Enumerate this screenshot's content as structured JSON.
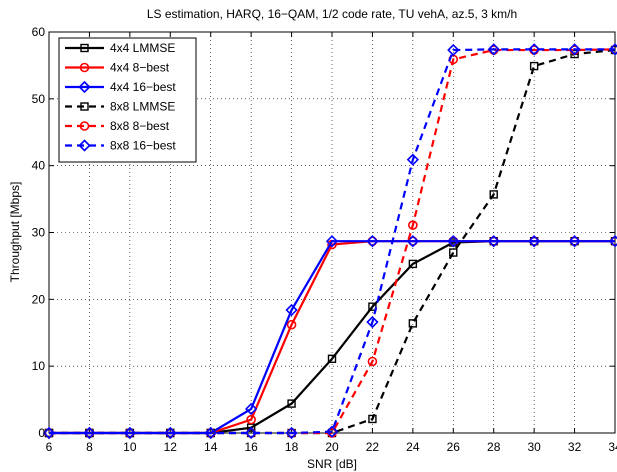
{
  "chart_data": {
    "type": "line",
    "title": "LS estimation, HARQ, 16−QAM, 1/2 code rate, TU vehA, az.5, 3 km/h",
    "xlabel": "SNR [dB]",
    "ylabel": "Throughput [Mbps]",
    "xlim": [
      6,
      34
    ],
    "ylim": [
      0,
      60
    ],
    "xticks": [
      "6",
      "8",
      "10",
      "12",
      "14",
      "16",
      "18",
      "20",
      "22",
      "24",
      "26",
      "28",
      "30",
      "32",
      "34"
    ],
    "yticks": [
      "0",
      "10",
      "20",
      "30",
      "40",
      "50",
      "60"
    ],
    "grid": true,
    "legend_position": "top-left",
    "x": [
      6,
      8,
      10,
      12,
      14,
      16,
      18,
      20,
      22,
      24,
      26,
      28,
      30,
      32,
      34
    ],
    "series": [
      {
        "name": "4x4 LMMSE",
        "color": "#000000",
        "dash": "solid",
        "marker": "square",
        "values": [
          0,
          0,
          0,
          0,
          0,
          0.8,
          4.4,
          11.1,
          18.9,
          25.3,
          28.5,
          28.7,
          28.7,
          28.7,
          28.7
        ]
      },
      {
        "name": "4x4 8−best",
        "color": "#ff0000",
        "dash": "solid",
        "marker": "circle",
        "values": [
          0,
          0,
          0,
          0,
          0,
          2.0,
          16.2,
          28.2,
          28.7,
          28.7,
          28.7,
          28.7,
          28.7,
          28.7,
          28.7
        ]
      },
      {
        "name": "4x4 16−best",
        "color": "#0000ff",
        "dash": "solid",
        "marker": "diamond",
        "values": [
          0,
          0,
          0,
          0,
          0,
          3.6,
          18.4,
          28.7,
          28.7,
          28.7,
          28.7,
          28.7,
          28.7,
          28.7,
          28.7
        ]
      },
      {
        "name": "8x8 LMMSE",
        "color": "#000000",
        "dash": "dashed",
        "marker": "square",
        "values": [
          0,
          0,
          0,
          0,
          0,
          0,
          0,
          0,
          2.1,
          16.4,
          27.0,
          35.7,
          54.9,
          56.7,
          57.3
        ]
      },
      {
        "name": "8x8 8−best",
        "color": "#ff0000",
        "dash": "dashed",
        "marker": "circle",
        "values": [
          0,
          0,
          0,
          0,
          0,
          0,
          0,
          0,
          10.7,
          31.1,
          55.9,
          57.3,
          57.3,
          57.3,
          57.4
        ]
      },
      {
        "name": "8x8 16−best",
        "color": "#0000ff",
        "dash": "dashed",
        "marker": "diamond",
        "values": [
          0,
          0,
          0,
          0,
          0,
          0,
          0,
          0.2,
          16.6,
          40.9,
          57.3,
          57.4,
          57.4,
          57.4,
          57.4
        ]
      }
    ]
  }
}
